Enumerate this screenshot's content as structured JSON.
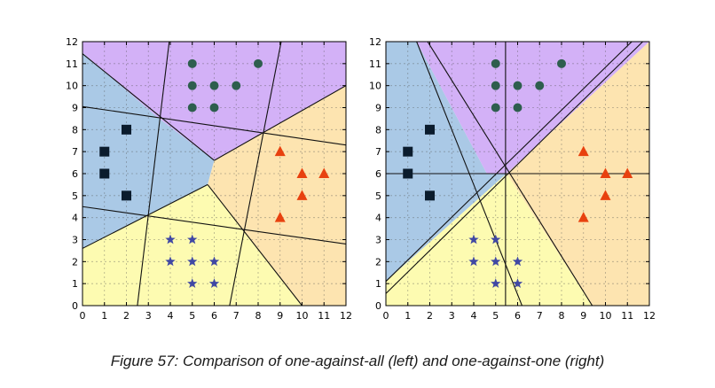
{
  "caption": "Figure 57: Comparison of one-against-all (left) and one-against-one (right)",
  "colors": {
    "region_square": "#aac9e6",
    "region_circle": "#d3b1f7",
    "region_triangle": "#fde4b0",
    "region_star": "#fdfbb1",
    "square": "#0b1c2d",
    "circle": "#2e5e4e",
    "triangle": "#e8410f",
    "star": "#4048a4"
  },
  "chart_data": [
    {
      "type": "scatter",
      "panel": "left",
      "method": "one-against-all",
      "title": "",
      "xlabel": "",
      "ylabel": "",
      "xlim": [
        0,
        12
      ],
      "ylim": [
        0,
        12
      ],
      "xticks": [
        "0",
        "1",
        "2",
        "3",
        "4",
        "5",
        "6",
        "7",
        "8",
        "9",
        "10",
        "11",
        "12"
      ],
      "yticks": [
        "0",
        "1",
        "2",
        "3",
        "4",
        "5",
        "6",
        "7",
        "8",
        "9",
        "10",
        "11",
        "12"
      ],
      "grid": true,
      "series": [
        {
          "marker": "square",
          "points": [
            [
              1,
              7
            ],
            [
              1,
              6
            ],
            [
              2,
              8
            ],
            [
              2,
              5
            ]
          ]
        },
        {
          "marker": "circle",
          "points": [
            [
              5,
              11
            ],
            [
              8,
              11
            ],
            [
              5,
              10
            ],
            [
              6,
              10
            ],
            [
              7,
              10
            ],
            [
              5,
              9
            ],
            [
              6,
              9
            ]
          ]
        },
        {
          "marker": "triangle",
          "points": [
            [
              9,
              7
            ],
            [
              10,
              6
            ],
            [
              11,
              6
            ],
            [
              10,
              5
            ],
            [
              9,
              4
            ]
          ]
        },
        {
          "marker": "star",
          "points": [
            [
              4,
              3
            ],
            [
              5,
              3
            ],
            [
              4,
              2
            ],
            [
              5,
              2
            ],
            [
              6,
              2
            ],
            [
              5,
              1
            ],
            [
              6,
              1
            ]
          ]
        }
      ],
      "regions": [
        {
          "class": "square",
          "polygon": [
            [
              0,
              11.5
            ],
            [
              0,
              2.6
            ],
            [
              3,
              4.15
            ],
            [
              5.7,
              5.5
            ],
            [
              6,
              6.6
            ],
            [
              3.5,
              8.5
            ],
            [
              0,
              11.5
            ]
          ]
        },
        {
          "class": "circle",
          "polygon": [
            [
              0,
              11.5
            ],
            [
              0,
              12
            ],
            [
              12,
              12
            ],
            [
              12,
              10
            ],
            [
              6,
              6.6
            ],
            [
              3.5,
              8.5
            ]
          ]
        },
        {
          "class": "triangle",
          "polygon": [
            [
              12,
              10
            ],
            [
              12,
              0
            ],
            [
              10,
              0
            ],
            [
              5.7,
              5.5
            ],
            [
              6,
              6.6
            ]
          ]
        },
        {
          "class": "star",
          "polygon": [
            [
              0,
              2.6
            ],
            [
              0,
              0
            ],
            [
              10,
              0
            ],
            [
              5.7,
              5.5
            ],
            [
              3,
              4.15
            ]
          ]
        }
      ],
      "boundaries": [
        [
          [
            0,
            9.05
          ],
          [
            12,
            7.3
          ]
        ],
        [
          [
            0,
            4.5
          ],
          [
            12,
            2.8
          ]
        ],
        [
          [
            2.5,
            0
          ],
          [
            3.95,
            12
          ]
        ],
        [
          [
            6.7,
            0
          ],
          [
            9.05,
            12
          ]
        ],
        [
          [
            0,
            11.45
          ],
          [
            6,
            6.6
          ]
        ],
        [
          [
            6,
            6.6
          ],
          [
            12,
            10
          ]
        ],
        [
          [
            0,
            2.6
          ],
          [
            5.7,
            5.5
          ]
        ],
        [
          [
            5.7,
            5.5
          ],
          [
            10,
            0
          ]
        ]
      ]
    },
    {
      "type": "scatter",
      "panel": "right",
      "method": "one-against-one",
      "title": "",
      "xlabel": "",
      "ylabel": "",
      "xlim": [
        0,
        12
      ],
      "ylim": [
        0,
        12
      ],
      "xticks": [
        "0",
        "1",
        "2",
        "3",
        "4",
        "5",
        "6",
        "7",
        "8",
        "9",
        "10",
        "11",
        "12"
      ],
      "yticks": [
        "0",
        "1",
        "2",
        "3",
        "4",
        "5",
        "6",
        "7",
        "8",
        "9",
        "10",
        "11",
        "12"
      ],
      "grid": true,
      "series": [
        {
          "marker": "square",
          "points": [
            [
              1,
              7
            ],
            [
              1,
              6
            ],
            [
              2,
              8
            ],
            [
              2,
              5
            ]
          ]
        },
        {
          "marker": "circle",
          "points": [
            [
              5,
              11
            ],
            [
              8,
              11
            ],
            [
              5,
              10
            ],
            [
              6,
              10
            ],
            [
              7,
              10
            ],
            [
              5,
              9
            ],
            [
              6,
              9
            ]
          ]
        },
        {
          "marker": "triangle",
          "points": [
            [
              9,
              7
            ],
            [
              10,
              6
            ],
            [
              11,
              6
            ],
            [
              10,
              5
            ],
            [
              9,
              4
            ]
          ]
        },
        {
          "marker": "star",
          "points": [
            [
              4,
              3
            ],
            [
              5,
              3
            ],
            [
              4,
              2
            ],
            [
              5,
              2
            ],
            [
              6,
              2
            ],
            [
              5,
              1
            ],
            [
              6,
              1
            ]
          ]
        }
      ],
      "regions": [
        {
          "class": "square",
          "polygon": [
            [
              0,
              12
            ],
            [
              1.4,
              12
            ],
            [
              4.6,
              6
            ],
            [
              5.5,
              6
            ],
            [
              0,
              1.1
            ]
          ]
        },
        {
          "class": "circle",
          "polygon": [
            [
              1.4,
              12
            ],
            [
              12,
              12
            ],
            [
              5.5,
              6
            ],
            [
              4.6,
              6
            ]
          ]
        },
        {
          "class": "triangle",
          "polygon": [
            [
              12,
              12
            ],
            [
              12,
              0
            ],
            [
              9.4,
              0
            ],
            [
              5.5,
              6
            ]
          ]
        },
        {
          "class": "star",
          "polygon": [
            [
              0,
              1.1
            ],
            [
              5.5,
              6
            ],
            [
              9.4,
              0
            ],
            [
              0,
              0
            ]
          ]
        }
      ],
      "boundaries": [
        [
          [
            0,
            6
          ],
          [
            12,
            6
          ]
        ],
        [
          [
            5.45,
            0
          ],
          [
            5.45,
            12
          ]
        ],
        [
          [
            1.4,
            12
          ],
          [
            6.2,
            0
          ]
        ],
        [
          [
            1.9,
            12
          ],
          [
            9.4,
            0
          ]
        ],
        [
          [
            0,
            1.1
          ],
          [
            11.2,
            12
          ]
        ],
        [
          [
            0,
            0.55
          ],
          [
            11.7,
            12
          ]
        ]
      ]
    }
  ]
}
